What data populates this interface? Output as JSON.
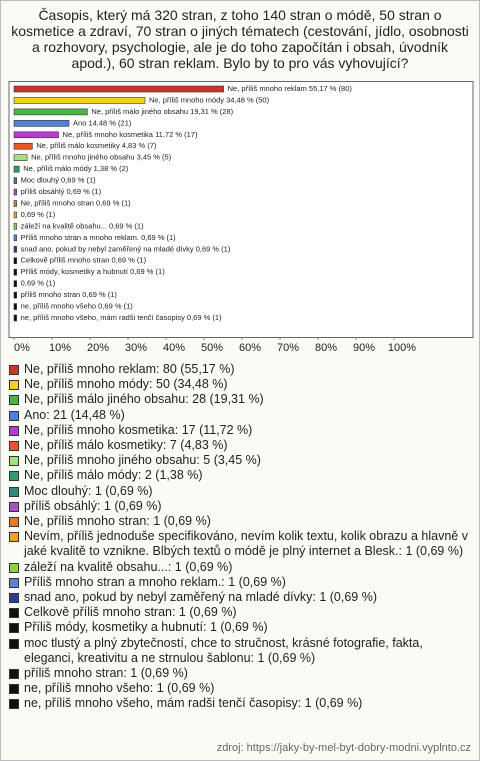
{
  "chart_data": {
    "type": "bar",
    "orientation": "horizontal",
    "title": "Časopis, který má 320 stran, z toho 140 stran o módě, 50 stran o kosmetice a zdraví, 70 stran o jiných tématech (cestování, jídlo, osobnosti a rozhovory, psychologie, ale je do toho započítán i obsah, úvodník apod.), 60 stran reklam. Bylo by to pro vás vyhovující?",
    "values": [
      55.17,
      34.48,
      19.31,
      14.48,
      11.72,
      4.83,
      3.45,
      1.38,
      0.69,
      0.69,
      0.69,
      0.69,
      0.69,
      0.69,
      0.69,
      0.69,
      0.69,
      0.69,
      0.69,
      0.69,
      0.69
    ],
    "value_labels": [
      "Ne, příliš mnoho reklam 55,17 % (80)",
      "Ne, příliš mnoho módy 34,48 % (50)",
      "Ne, příliš málo jiného obsahu 19,31 % (28)",
      "Ano 14,48 % (21)",
      "Ne, příliš mnoho kosmetika 11,72 % (17)",
      "Ne, příliš málo kosmetiky 4,83 % (7)",
      "Ne, příliš mnoho jiného obsahu 3,45 % (5)",
      "Ne, příliš málo módy 1,38 % (2)",
      "Moc dlouhý 0,69 % (1)",
      "příliš obsáhlý 0,69 % (1)",
      "Ne, příliš mnoho stran 0,69 % (1)",
      "0,69 % (1)",
      "záleží na kvalitě obsahu... 0,69 % (1)",
      "Příliš mnoho stran a mnoho reklam. 0,69 % (1)",
      "snad ano, pokud by nebyl zaměřený na mladé dívky 0,69 % (1)",
      "Celkově příliš mnoho stran 0,69 % (1)",
      "Příliš módy, kosmetiky a hubnutí 0,69 % (1)",
      "0,69 % (1)",
      "příliš mnoho stran 0,69 % (1)",
      "ne, příliš mnoho všeho 0,69 % (1)",
      "ne, příliš mnoho všeho, mám radši tenčí časopisy 0,69 % (1)"
    ],
    "colors": [
      "#c8372a",
      "#f2d21b",
      "#4db548",
      "#4f7fe0",
      "#b43dcc",
      "#e8552b",
      "#a6e27a",
      "#2f9c6e",
      "#2a8a7c",
      "#a653c6",
      "#e67a22",
      "#f0a422",
      "#8fd046",
      "#5d82cf",
      "#2b3d8e",
      "#111111",
      "#111111",
      "#111111",
      "#111111",
      "#111111",
      "#111111"
    ],
    "legend": [
      "Ne, příliš mnoho reklam: 80 (55,17 %)",
      "Ne, příliš mnoho módy: 50 (34,48 %)",
      "Ne, příliš málo jiného obsahu: 28 (19,31 %)",
      "Ano: 21 (14,48 %)",
      "Ne, příliš mnoho kosmetika: 17 (11,72 %)",
      "Ne, příliš málo kosmetiky: 7 (4,83 %)",
      "Ne, příliš mnoho jiného obsahu: 5 (3,45 %)",
      "Ne, příliš málo módy: 2 (1,38 %)",
      "Moc dlouhý: 1 (0,69 %)",
      "příliš obsáhlý: 1 (0,69 %)",
      "Ne, příliš mnoho stran: 1 (0,69 %)",
      "Nevím, příliš jednoduše specifikováno, nevím kolik textu, kolik obrazu a hlavně v jaké kvalitě to vznikne. Blbých textů o módě je plný internet a Blesk.: 1 (0,69 %)",
      "záleží na kvalitě obsahu...: 1 (0,69 %)",
      "Příliš mnoho stran a mnoho reklam.: 1 (0,69 %)",
      "snad ano, pokud by nebyl zaměřený na mladé dívky: 1 (0,69 %)",
      "Celkově příliš mnoho stran: 1 (0,69 %)",
      "Příliš módy, kosmetiky a hubnutí: 1 (0,69 %)",
      "moc tlustý a plný zbytečností, chce to stručnost, krásné fotografie, fakta, eleganci, kreativitu a ne strnulou šablonu: 1 (0,69 %)",
      "příliš mnoho stran: 1 (0,69 %)",
      "ne, příliš mnoho všeho: 1 (0,69 %)",
      "ne, příliš mnoho všeho, mám radši tenčí časopisy: 1 (0,69 %)"
    ],
    "xlim": [
      0,
      100
    ],
    "xticks": [
      {
        "value": 0,
        "label": "0%"
      },
      {
        "value": 10,
        "label": "10%"
      },
      {
        "value": 20,
        "label": "20%"
      },
      {
        "value": 30,
        "label": "30%"
      },
      {
        "value": 40,
        "label": "40%"
      },
      {
        "value": 50,
        "label": "50%"
      },
      {
        "value": 60,
        "label": "60%"
      },
      {
        "value": 70,
        "label": "70%"
      },
      {
        "value": 80,
        "label": "80%"
      },
      {
        "value": 90,
        "label": "90%"
      },
      {
        "value": 100,
        "label": "100%"
      }
    ],
    "source": "zdroj: https://jaky-by-mel-byt-dobry-modni.vyplnto.cz"
  }
}
